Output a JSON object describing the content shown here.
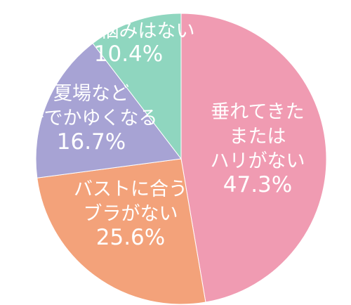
{
  "chart_data": {
    "type": "pie",
    "title": "",
    "slices": [
      {
        "label_lines": [
          "垂れてきた",
          "または",
          "ハリがない"
        ],
        "value": 47.3,
        "value_text": "47.3%",
        "color": "#f09bb2"
      },
      {
        "label_lines": [
          "バストに合う",
          "ブラがない"
        ],
        "value": 25.6,
        "value_text": "25.6%",
        "color": "#f3a27a"
      },
      {
        "label_lines": [
          "夏場など",
          "汗でかゆくなる"
        ],
        "value": 16.7,
        "value_text": "16.7%",
        "color": "#a7a3d4"
      },
      {
        "label_lines": [
          "特に悩みはない"
        ],
        "value": 10.4,
        "value_text": "10.4%",
        "color": "#8fd6bf"
      }
    ],
    "start_angle_deg": 0,
    "direction": "clockwise",
    "data_labels": "inside"
  }
}
